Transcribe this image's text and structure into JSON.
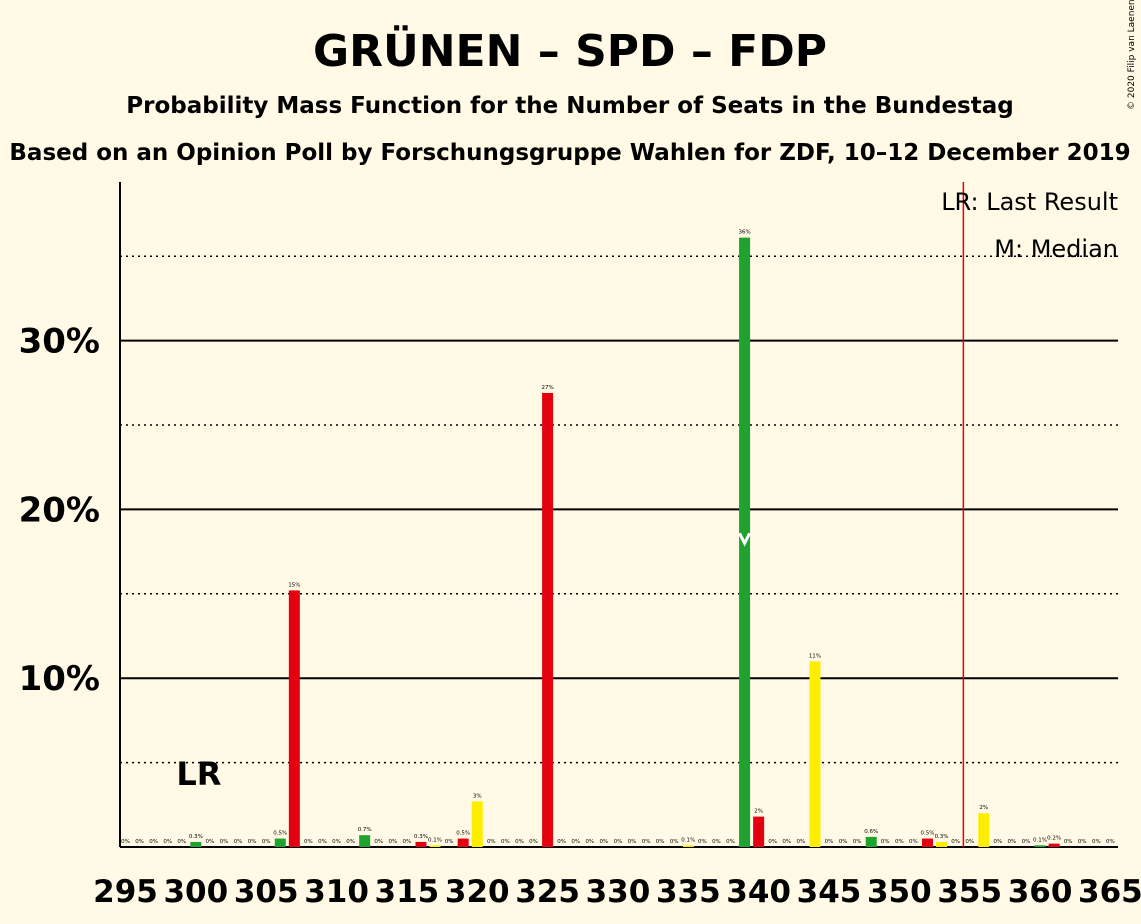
{
  "chart_data": {
    "type": "bar",
    "title": "GRÜNEN – SPD – FDP",
    "subtitle1": "Probability Mass Function for the Number of Seats in the Bundestag",
    "subtitle2": "Based on an Opinion Poll by Forschungsgruppe Wahlen for ZDF, 10–12 December 2019",
    "copyright": "© 2020 Filip van Laenen",
    "legend_lr": "LR: Last Result",
    "legend_median": "M: Median",
    "lr_marker_label": "LR",
    "median_marker_label": "M",
    "ylim": [
      0,
      39
    ],
    "y_ticks": [
      {
        "value": 10,
        "label": "10%"
      },
      {
        "value": 20,
        "label": "20%"
      },
      {
        "value": 30,
        "label": "30%"
      }
    ],
    "y_dotted": [
      5,
      15,
      25,
      35
    ],
    "x_ticks": [
      295,
      300,
      305,
      310,
      315,
      320,
      325,
      330,
      335,
      340,
      345,
      350,
      355,
      360,
      365
    ],
    "x_min": 295,
    "x_max": 365,
    "last_result_seat": 355,
    "median_seat": 339,
    "lr_label_seat": 300,
    "colors": {
      "green": "#1FA22E",
      "red": "#E3000F",
      "yellow": "#FFED00",
      "lr_line": "#E3000F",
      "background": "#FFF9E5"
    },
    "bars": [
      {
        "seat": 295,
        "value": 0,
        "label": "0%",
        "color": "green"
      },
      {
        "seat": 296,
        "value": 0,
        "label": "0%",
        "color": "green"
      },
      {
        "seat": 297,
        "value": 0,
        "label": "0%",
        "color": "green"
      },
      {
        "seat": 298,
        "value": 0,
        "label": "0%",
        "color": "green"
      },
      {
        "seat": 299,
        "value": 0,
        "label": "0%",
        "color": "green"
      },
      {
        "seat": 300,
        "value": 0.3,
        "label": "0.3%",
        "color": "green"
      },
      {
        "seat": 301,
        "value": 0,
        "label": "0%",
        "color": "green"
      },
      {
        "seat": 302,
        "value": 0,
        "label": "0%",
        "color": "green"
      },
      {
        "seat": 303,
        "value": 0,
        "label": "0%",
        "color": "green"
      },
      {
        "seat": 304,
        "value": 0,
        "label": "0%",
        "color": "green"
      },
      {
        "seat": 305,
        "value": 0,
        "label": "0%",
        "color": "green"
      },
      {
        "seat": 306,
        "value": 0.5,
        "label": "0.5%",
        "color": "green"
      },
      {
        "seat": 307,
        "value": 15.2,
        "label": "15%",
        "color": "red"
      },
      {
        "seat": 308,
        "value": 0,
        "label": "0%",
        "color": "green"
      },
      {
        "seat": 309,
        "value": 0,
        "label": "0%",
        "color": "green"
      },
      {
        "seat": 310,
        "value": 0,
        "label": "0%",
        "color": "green"
      },
      {
        "seat": 311,
        "value": 0,
        "label": "0%",
        "color": "green"
      },
      {
        "seat": 312,
        "value": 0.7,
        "label": "0.7%",
        "color": "green"
      },
      {
        "seat": 313,
        "value": 0,
        "label": "0%",
        "color": "green"
      },
      {
        "seat": 314,
        "value": 0,
        "label": "0%",
        "color": "green"
      },
      {
        "seat": 315,
        "value": 0,
        "label": "0%",
        "color": "green"
      },
      {
        "seat": 316,
        "value": 0.3,
        "label": "0.3%",
        "color": "red"
      },
      {
        "seat": 317,
        "value": 0.1,
        "label": "0.1%",
        "color": "yellow"
      },
      {
        "seat": 318,
        "value": 0,
        "label": "0%",
        "color": "green"
      },
      {
        "seat": 319,
        "value": 0.5,
        "label": "0.5%",
        "color": "red"
      },
      {
        "seat": 320,
        "value": 2.7,
        "label": "3%",
        "color": "yellow"
      },
      {
        "seat": 321,
        "value": 0,
        "label": "0%",
        "color": "green"
      },
      {
        "seat": 322,
        "value": 0,
        "label": "0%",
        "color": "green"
      },
      {
        "seat": 323,
        "value": 0,
        "label": "0%",
        "color": "green"
      },
      {
        "seat": 324,
        "value": 0,
        "label": "0%",
        "color": "green"
      },
      {
        "seat": 325,
        "value": 26.9,
        "label": "27%",
        "color": "red"
      },
      {
        "seat": 326,
        "value": 0,
        "label": "0%",
        "color": "green"
      },
      {
        "seat": 327,
        "value": 0,
        "label": "0%",
        "color": "green"
      },
      {
        "seat": 328,
        "value": 0,
        "label": "0%",
        "color": "green"
      },
      {
        "seat": 329,
        "value": 0,
        "label": "0%",
        "color": "green"
      },
      {
        "seat": 330,
        "value": 0,
        "label": "0%",
        "color": "green"
      },
      {
        "seat": 331,
        "value": 0,
        "label": "0%",
        "color": "green"
      },
      {
        "seat": 332,
        "value": 0,
        "label": "0%",
        "color": "green"
      },
      {
        "seat": 333,
        "value": 0,
        "label": "0%",
        "color": "green"
      },
      {
        "seat": 334,
        "value": 0,
        "label": "0%",
        "color": "green"
      },
      {
        "seat": 335,
        "value": 0.1,
        "label": "0.1%",
        "color": "yellow"
      },
      {
        "seat": 336,
        "value": 0,
        "label": "0%",
        "color": "green"
      },
      {
        "seat": 337,
        "value": 0,
        "label": "0%",
        "color": "green"
      },
      {
        "seat": 338,
        "value": 0,
        "label": "0%",
        "color": "green"
      },
      {
        "seat": 339,
        "value": 36.1,
        "label": "36%",
        "color": "green"
      },
      {
        "seat": 340,
        "value": 1.8,
        "label": "2%",
        "color": "red"
      },
      {
        "seat": 341,
        "value": 0,
        "label": "0%",
        "color": "green"
      },
      {
        "seat": 342,
        "value": 0,
        "label": "0%",
        "color": "green"
      },
      {
        "seat": 343,
        "value": 0,
        "label": "0%",
        "color": "green"
      },
      {
        "seat": 344,
        "value": 11.0,
        "label": "11%",
        "color": "yellow"
      },
      {
        "seat": 345,
        "value": 0,
        "label": "0%",
        "color": "green"
      },
      {
        "seat": 346,
        "value": 0,
        "label": "0%",
        "color": "green"
      },
      {
        "seat": 347,
        "value": 0,
        "label": "0%",
        "color": "green"
      },
      {
        "seat": 348,
        "value": 0.6,
        "label": "0.6%",
        "color": "green"
      },
      {
        "seat": 349,
        "value": 0,
        "label": "0%",
        "color": "green"
      },
      {
        "seat": 350,
        "value": 0,
        "label": "0%",
        "color": "green"
      },
      {
        "seat": 351,
        "value": 0,
        "label": "0%",
        "color": "green"
      },
      {
        "seat": 352,
        "value": 0.5,
        "label": "0.5%",
        "color": "red"
      },
      {
        "seat": 353,
        "value": 0.3,
        "label": "0.3%",
        "color": "yellow"
      },
      {
        "seat": 354,
        "value": 0,
        "label": "0%",
        "color": "green"
      },
      {
        "seat": 355,
        "value": 0,
        "label": "0%",
        "color": "green"
      },
      {
        "seat": 356,
        "value": 2.0,
        "label": "2%",
        "color": "yellow"
      },
      {
        "seat": 357,
        "value": 0,
        "label": "0%",
        "color": "green"
      },
      {
        "seat": 358,
        "value": 0,
        "label": "0%",
        "color": "green"
      },
      {
        "seat": 359,
        "value": 0,
        "label": "0%",
        "color": "green"
      },
      {
        "seat": 360,
        "value": 0.1,
        "label": "0.1%",
        "color": "green"
      },
      {
        "seat": 361,
        "value": 0.2,
        "label": "0.2%",
        "color": "red"
      },
      {
        "seat": 362,
        "value": 0,
        "label": "0%",
        "color": "green"
      },
      {
        "seat": 363,
        "value": 0,
        "label": "0%",
        "color": "green"
      },
      {
        "seat": 364,
        "value": 0,
        "label": "0%",
        "color": "green"
      },
      {
        "seat": 365,
        "value": 0,
        "label": "0%",
        "color": "green"
      }
    ]
  }
}
